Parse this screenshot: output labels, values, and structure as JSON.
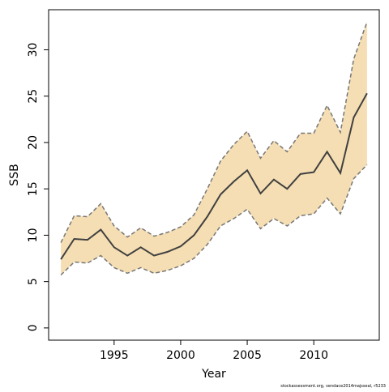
{
  "chart_data": {
    "type": "line",
    "xlabel": "Year",
    "ylabel": "SSB",
    "footnote": "stockassessment.org, vendace2014majsseal, r5233",
    "x": [
      1991,
      1992,
      1993,
      1994,
      1995,
      1996,
      1997,
      1998,
      1999,
      2000,
      2001,
      2002,
      2003,
      2004,
      2005,
      2006,
      2007,
      2008,
      2009,
      2010,
      2011,
      2012,
      2013,
      2014
    ],
    "values": [
      7.4,
      9.6,
      9.5,
      10.6,
      8.7,
      7.8,
      8.7,
      7.8,
      8.2,
      8.8,
      10.0,
      12.0,
      14.4,
      15.8,
      17.0,
      14.5,
      16.0,
      15.0,
      16.6,
      16.8,
      19.0,
      16.7,
      22.7,
      25.3
    ],
    "upper": [
      9.2,
      12.1,
      12.0,
      13.4,
      11.0,
      9.8,
      10.8,
      9.9,
      10.3,
      10.9,
      12.2,
      15.0,
      18.0,
      19.8,
      21.2,
      18.3,
      20.2,
      19.0,
      21.0,
      21.0,
      24.0,
      21.1,
      29.0,
      33.0
    ],
    "lower": [
      5.7,
      7.1,
      7.0,
      7.8,
      6.5,
      5.9,
      6.5,
      5.9,
      6.2,
      6.7,
      7.5,
      9.0,
      11.0,
      11.8,
      12.8,
      10.7,
      11.8,
      11.0,
      12.1,
      12.3,
      14.0,
      12.3,
      16.1,
      17.6
    ],
    "color": "#404040",
    "band_color": "#f5deb3",
    "bound_color": "#777777",
    "xlim": [
      1990.08,
      2014.92
    ],
    "xticks": [
      1995,
      2000,
      2005,
      2010
    ],
    "ylim": [
      -1.32,
      34.32
    ],
    "yticks": [
      0,
      5,
      10,
      15,
      20,
      25,
      30
    ]
  }
}
